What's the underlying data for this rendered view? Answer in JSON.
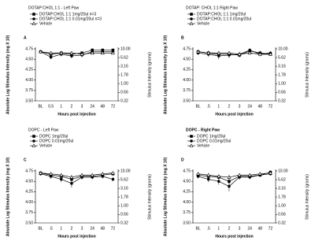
{
  "chart_data": [
    {
      "type": "line",
      "panel": "A",
      "title": "DOTAP:CHOL 1:1 - Left Paw",
      "title_bold": false,
      "y_label": "Absolute Log Stimulus Intensity (mg X 10)",
      "y2_label": "Stimulus Intensity (grams)",
      "x_label": "Hours post injection",
      "categories": [
        "BL",
        "0.5",
        "1",
        "2",
        "3",
        "24",
        "48",
        "72"
      ],
      "ylim": [
        3.5,
        4.75
      ],
      "yticks": [
        {
          "value": 3.5,
          "label": "3.50"
        },
        3.75,
        {
          "value": 4,
          "label": "4.00"
        },
        4.25,
        {
          "value": 4.5,
          "label": "4.50"
        },
        4.75
      ],
      "y2log": true,
      "y2lim": [
        0.32,
        10
      ],
      "y2ticks": [
        0.32,
        0.56,
        {
          "value": 1,
          "label": "1.00"
        },
        1.78,
        3.16,
        5.62,
        {
          "value": 10,
          "label": "10.00"
        }
      ],
      "series": [
        {
          "name": "DOTAP:CHOL 1:1 1mg/20ul n=3",
          "color": "#000000",
          "marker": "square",
          "values": [
            4.68,
            4.62,
            4.65,
            4.62,
            4.65,
            4.72,
            4.72,
            4.72
          ],
          "errors": [
            0.04,
            0.04,
            0.05,
            0.05,
            0.04,
            0.04,
            0.03,
            0.03
          ]
        },
        {
          "name": "DOTAP:CHOL 1:1 0.01mg/20ul n=3",
          "color": "#000000",
          "marker": "circle",
          "values": [
            4.68,
            4.55,
            4.62,
            4.58,
            4.6,
            4.68,
            4.68,
            4.68
          ],
          "errors": [
            0.04,
            0.05,
            0.05,
            0.06,
            0.05,
            0.04,
            0.04,
            0.04
          ]
        },
        {
          "name": "Vehicle",
          "color": "#000000",
          "marker": "triangle",
          "values": [
            4.68,
            4.65,
            4.65,
            4.65,
            4.62,
            4.65,
            4.65,
            4.65
          ],
          "errors": [
            0.03,
            0.03,
            0.04,
            0.04,
            0.04,
            0.03,
            0.03,
            0.03
          ]
        }
      ]
    },
    {
      "type": "line",
      "panel": "B",
      "title": "DOTAP: CHOL 1:1 Right Paw",
      "title_bold": false,
      "y_label": "Absolute Log Stimulus Intensity (mg X 10)",
      "y2_label": "Stimulus Intensity (grams)",
      "x_label": "Hours post injection",
      "categories": [
        "BL",
        ".5",
        "1",
        "2",
        "3",
        "24",
        "48",
        "72"
      ],
      "ylim": [
        3.5,
        4.75
      ],
      "yticks": [
        {
          "value": 3.5,
          "label": "3.50"
        },
        3.75,
        {
          "value": 4,
          "label": "4.00"
        },
        4.25,
        {
          "value": 4.5,
          "label": "4.50"
        },
        4.75
      ],
      "y2log": true,
      "y2lim": [
        0.32,
        10
      ],
      "y2ticks": [
        0.32,
        0.56,
        {
          "value": 1,
          "label": "1.00"
        },
        1.78,
        3.16,
        5.62,
        {
          "value": 10,
          "label": "10.00"
        }
      ],
      "series": [
        {
          "name": "DOTAP:CHOL 1:1 1mg/20ul",
          "color": "#000000",
          "marker": "square",
          "values": [
            4.68,
            4.65,
            4.62,
            4.62,
            4.6,
            4.7,
            4.65,
            4.62
          ],
          "errors": [
            0.05,
            0.06,
            0.08,
            0.07,
            0.06,
            0.05,
            0.05,
            0.04
          ]
        },
        {
          "name": "DOTAP:CHOL 1:1 0.01mg/20ul",
          "color": "#000000",
          "marker": "circle",
          "values": [
            4.65,
            4.62,
            4.58,
            4.6,
            4.62,
            4.72,
            4.62,
            4.65
          ],
          "errors": [
            0.05,
            0.06,
            0.08,
            0.07,
            0.06,
            0.04,
            0.05,
            0.04
          ]
        },
        {
          "name": "Vehicle",
          "color": "#000000",
          "marker": "triangle",
          "values": [
            4.68,
            4.65,
            4.65,
            4.65,
            4.62,
            4.65,
            4.62,
            4.62
          ],
          "errors": [
            0.03,
            0.04,
            0.04,
            0.04,
            0.04,
            0.03,
            0.03,
            0.03
          ]
        }
      ]
    },
    {
      "type": "line",
      "panel": "C",
      "title": "DOPC - Left Paw",
      "title_bold": false,
      "y_label": "Absolute Log Stimulus Intensity (mg X 10)",
      "y2_label": "Stimulus Intensity (grams)",
      "x_label": "Hours post injection",
      "categories": [
        "BL",
        ".5",
        "1",
        "2",
        "3",
        "24",
        "48",
        "72"
      ],
      "ylim": [
        3.5,
        4.75
      ],
      "yticks": [
        {
          "value": 3.5,
          "label": "3.50"
        },
        3.75,
        {
          "value": 4,
          "label": "4.00"
        },
        4.25,
        {
          "value": 4.5,
          "label": "4.50"
        },
        4.75
      ],
      "y2log": true,
      "y2lim": [
        0.32,
        10
      ],
      "y2ticks": [
        0.32,
        0.56,
        {
          "value": 1,
          "label": "1.00"
        },
        1.78,
        3.16,
        5.62,
        {
          "value": 10,
          "label": "10.00"
        }
      ],
      "series": [
        {
          "name": "DOPC 1mg/20ul",
          "color": "#000000",
          "marker": "square",
          "values": [
            4.7,
            4.65,
            4.62,
            4.55,
            4.62,
            4.62,
            4.65,
            4.68
          ],
          "errors": [
            0.04,
            0.05,
            0.06,
            0.08,
            0.06,
            0.05,
            0.04,
            0.04
          ]
        },
        {
          "name": "DOPC 0.01mg/20ul",
          "color": "#000000",
          "marker": "circle",
          "values": [
            4.68,
            4.62,
            4.55,
            4.45,
            4.6,
            4.6,
            4.62,
            4.55
          ],
          "errors": [
            0.04,
            0.06,
            0.07,
            0.1,
            0.06,
            0.05,
            0.05,
            0.05
          ]
        },
        {
          "name": "Vehicle",
          "color": "#000000",
          "marker": "triangle",
          "values": [
            4.7,
            4.68,
            4.65,
            4.6,
            4.65,
            4.65,
            4.68,
            4.7
          ],
          "errors": [
            0.03,
            0.04,
            0.04,
            0.05,
            0.04,
            0.03,
            0.03,
            0.03
          ]
        }
      ]
    },
    {
      "type": "line",
      "panel": "D",
      "title": "DOPC - Right Paw",
      "title_bold": true,
      "y_label": "Absolute Log Stimulus Intensity (mg X 10)",
      "y2_label": "Stimulus Intensity (grams)",
      "x_label": "Hours post injection",
      "categories": [
        "BL",
        ".5",
        "1",
        "2",
        "3",
        "24",
        "48",
        "72"
      ],
      "ylim": [
        3.5,
        4.75
      ],
      "yticks": [
        {
          "value": 3.5,
          "label": "3.50"
        },
        3.75,
        {
          "value": 4,
          "label": "4.00"
        },
        4.25,
        {
          "value": 4.5,
          "label": "4.50"
        },
        4.75
      ],
      "y2log": true,
      "y2lim": [
        0.32,
        10
      ],
      "y2ticks": [
        0.32,
        0.56,
        {
          "value": 1,
          "label": "1.00"
        },
        1.78,
        3.16,
        5.62,
        {
          "value": 10,
          "label": "10.00"
        }
      ],
      "series": [
        {
          "name": "DOPC 1mg/20ul",
          "color": "#000000",
          "marker": "square",
          "values": [
            4.65,
            4.62,
            4.6,
            4.5,
            4.62,
            4.62,
            4.65,
            4.72
          ],
          "errors": [
            0.05,
            0.06,
            0.07,
            0.09,
            0.06,
            0.05,
            0.04,
            0.04
          ]
        },
        {
          "name": "DOPC 0.01mg/20ul",
          "color": "#000000",
          "marker": "circle",
          "values": [
            4.62,
            4.55,
            4.5,
            4.38,
            4.6,
            4.6,
            4.65,
            4.68
          ],
          "errors": [
            0.05,
            0.07,
            0.08,
            0.12,
            0.06,
            0.05,
            0.04,
            0.04
          ]
        },
        {
          "name": "Vehicle",
          "color": "#000000",
          "marker": "triangle",
          "values": [
            4.68,
            4.65,
            4.62,
            4.6,
            4.65,
            4.65,
            4.68,
            4.7
          ],
          "errors": [
            0.03,
            0.04,
            0.04,
            0.05,
            0.04,
            0.03,
            0.03,
            0.03
          ]
        }
      ]
    }
  ]
}
